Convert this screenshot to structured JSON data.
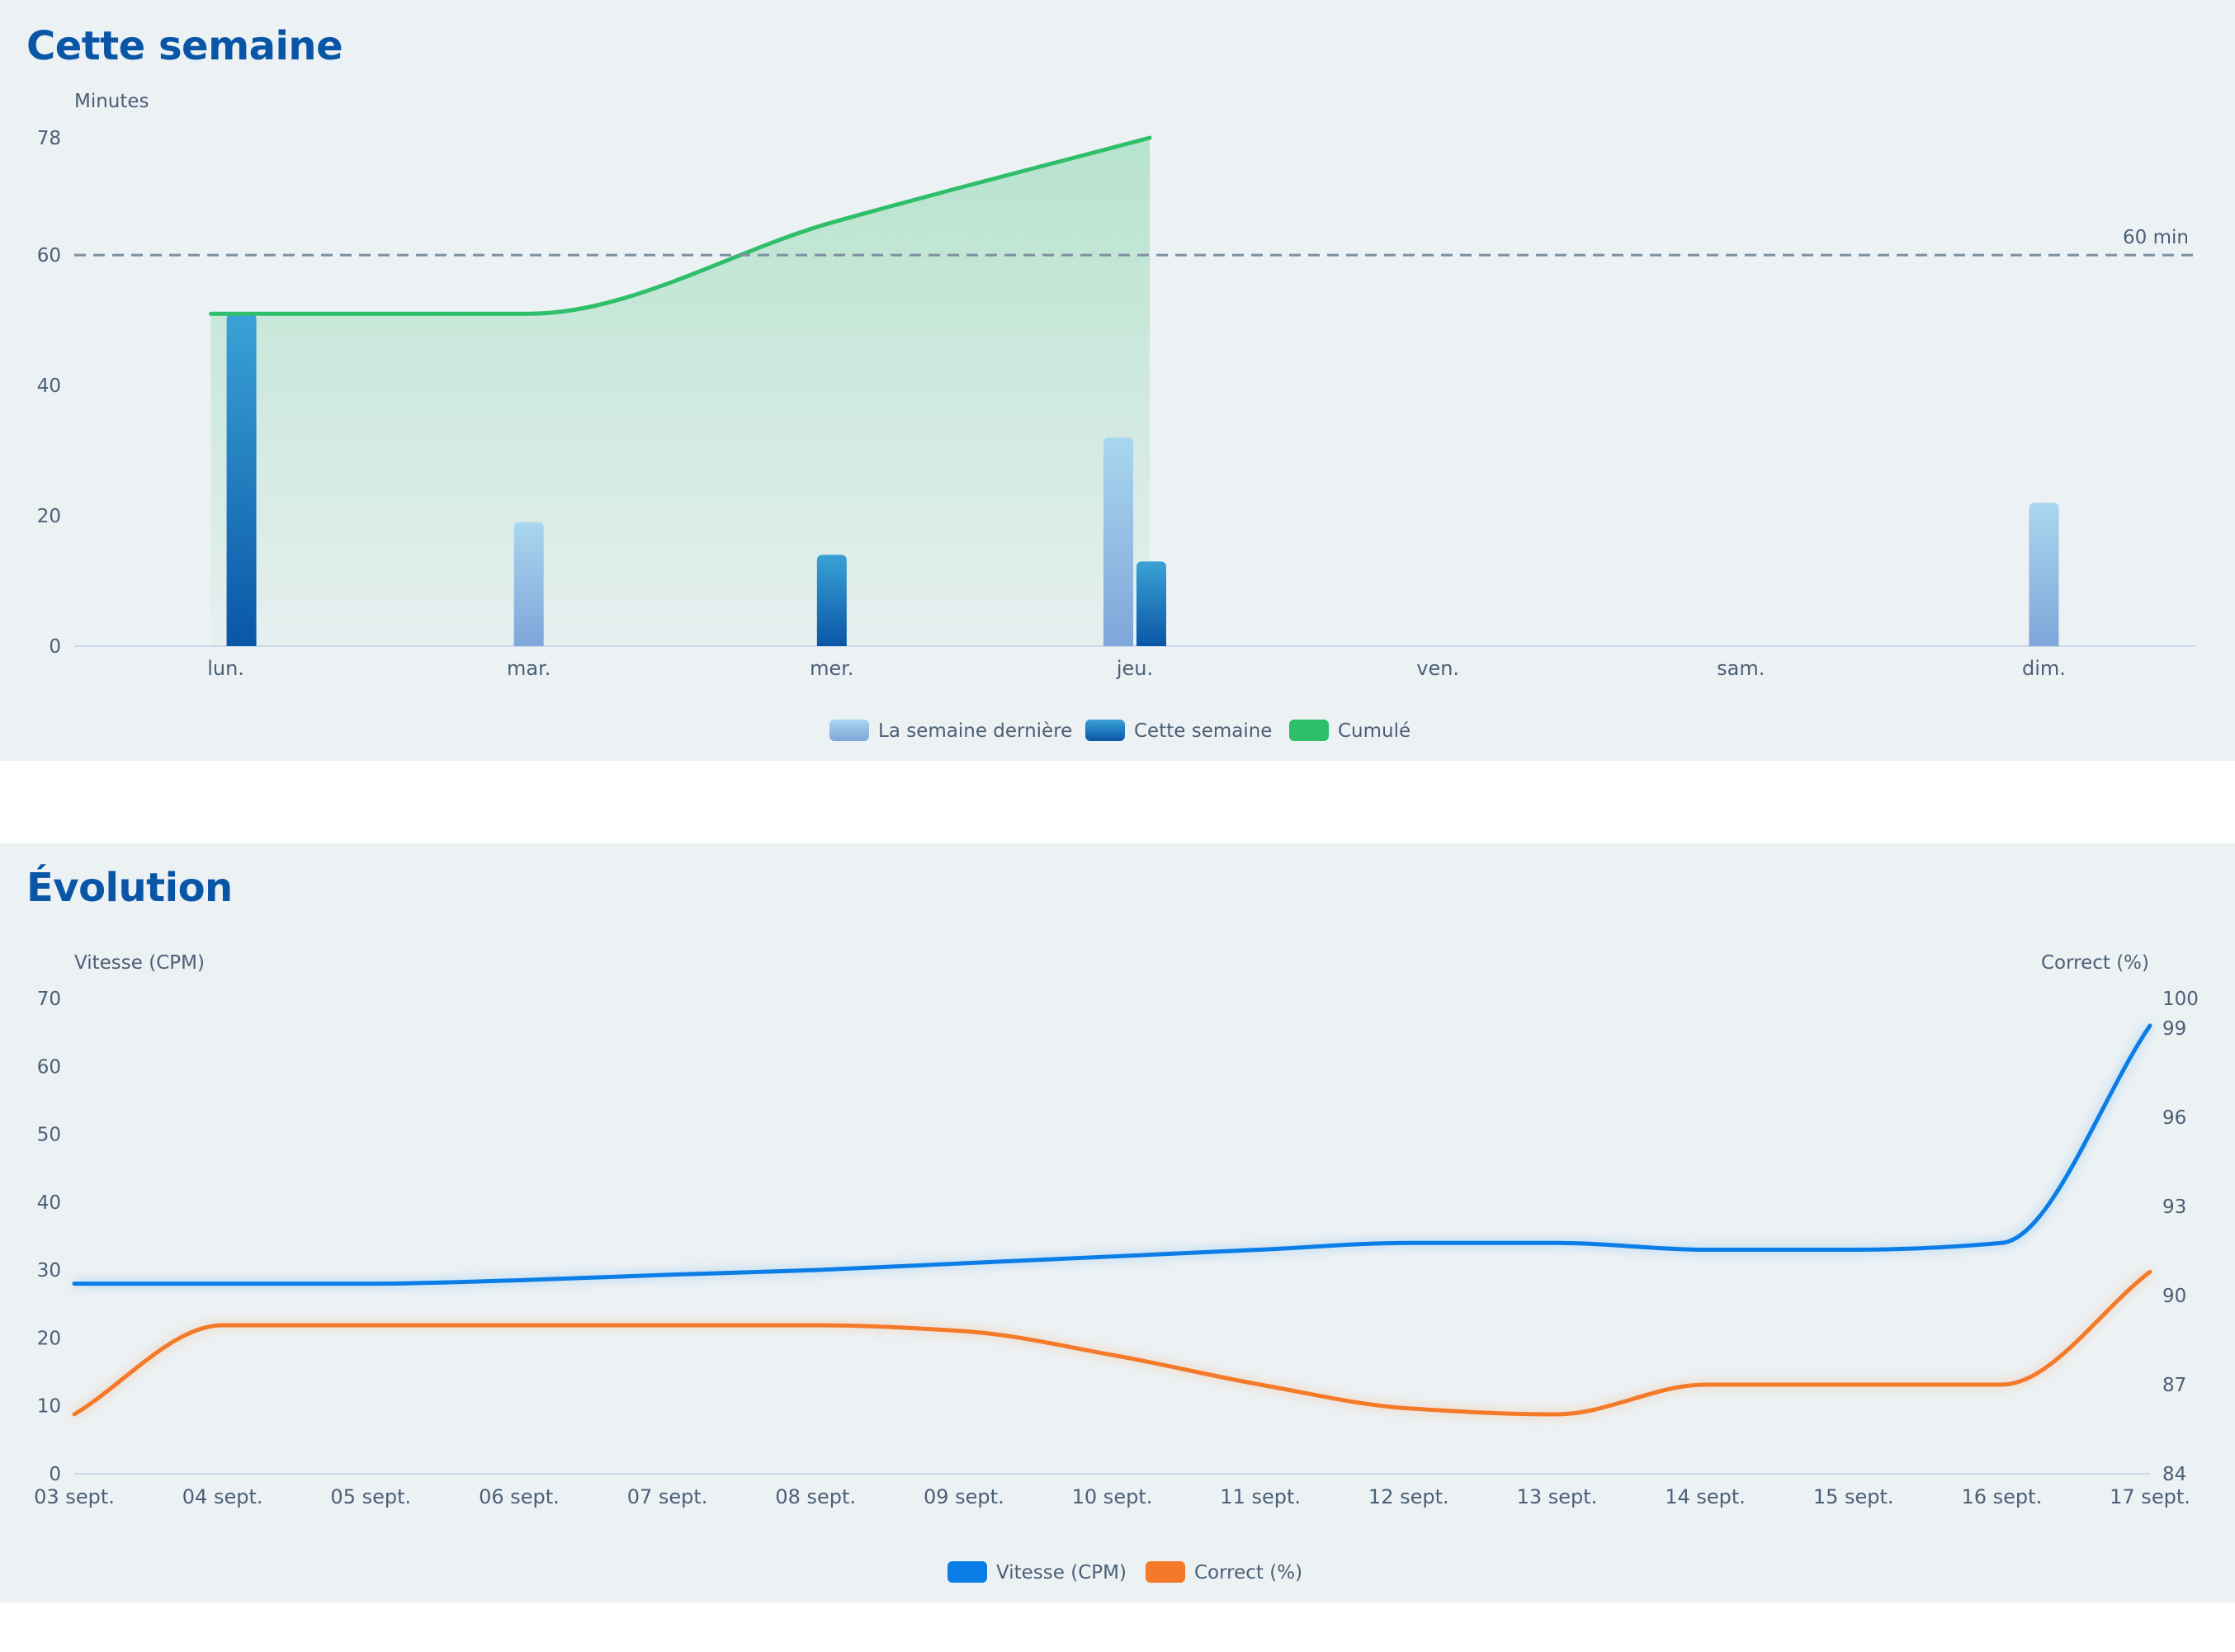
{
  "weekly": {
    "title": "Cette semaine",
    "chart_data": {
      "type": "bar",
      "title": "Cette semaine",
      "ylabel": "Minutes",
      "ylim": [
        0,
        78
      ],
      "yticks": [
        0,
        20,
        40,
        60,
        78
      ],
      "categories": [
        "lun.",
        "mar.",
        "mer.",
        "jeu.",
        "ven.",
        "sam.",
        "dim."
      ],
      "series": [
        {
          "name": "La semaine dernière",
          "type": "bar",
          "values": [
            null,
            19,
            null,
            32,
            null,
            null,
            22
          ]
        },
        {
          "name": "Cette semaine",
          "type": "bar",
          "values": [
            51,
            null,
            14,
            13,
            null,
            null,
            null
          ]
        },
        {
          "name": "Cumulé",
          "type": "area",
          "values": [
            51,
            51,
            65,
            78,
            null,
            null,
            null
          ]
        }
      ],
      "reference_line": {
        "value": 60,
        "label": "60 min",
        "style": "dashed"
      },
      "grid": false,
      "legend": "bottom-center"
    }
  },
  "evolution": {
    "title": "Évolution",
    "chart_data": {
      "type": "line",
      "title": "Évolution",
      "x": [
        "03 sept.",
        "04 sept.",
        "05 sept.",
        "06 sept.",
        "07 sept.",
        "08 sept.",
        "09 sept.",
        "10 sept.",
        "11 sept.",
        "12 sept.",
        "13 sept.",
        "14 sept.",
        "15 sept.",
        "16 sept.",
        "17 sept."
      ],
      "ylabel_left": "Vitesse (CPM)",
      "ylabel_right": "Correct (%)",
      "ylim_left": [
        0,
        70
      ],
      "yticks_left": [
        0,
        10,
        20,
        30,
        40,
        50,
        60,
        70
      ],
      "ylim_right": [
        84,
        100
      ],
      "yticks_right": [
        84,
        87,
        90,
        93,
        96,
        99,
        100
      ],
      "series": [
        {
          "name": "Vitesse (CPM)",
          "axis": "left",
          "values": [
            28,
            28,
            28,
            28.5,
            29.3,
            30,
            31,
            32,
            33,
            34,
            34,
            33,
            33,
            34,
            66
          ]
        },
        {
          "name": "Correct (%)",
          "axis": "right",
          "values": [
            86,
            89,
            89,
            89,
            89,
            89,
            88.8,
            88,
            87,
            86.2,
            86,
            87,
            87,
            87,
            90.8
          ]
        }
      ],
      "grid": false,
      "legend": "bottom-center"
    }
  },
  "colors": {
    "title": "#0a56a6",
    "last_week": "#8fb4e3",
    "this_week": "#0a56a6",
    "cumulative": "#2fbf6a",
    "speed": "#0b7de6",
    "accuracy": "#f47a2a",
    "axis_text": "#4b5f76"
  }
}
